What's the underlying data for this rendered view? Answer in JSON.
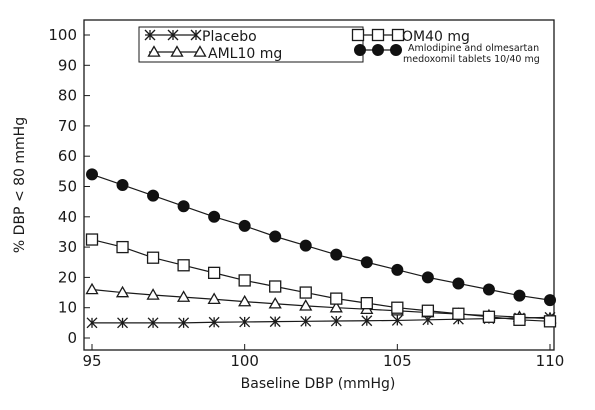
{
  "chart_data": {
    "type": "line",
    "xlabel": "Baseline DBP (mmHg)",
    "ylabel": "% DBP < 80 mmHg",
    "xlim": [
      95,
      110
    ],
    "ylim": [
      0,
      100
    ],
    "xticks": [
      95,
      100,
      105,
      110
    ],
    "yticks": [
      0,
      10,
      20,
      30,
      40,
      50,
      60,
      70,
      80,
      90,
      100
    ],
    "x": [
      95,
      96,
      97,
      98,
      99,
      100,
      101,
      102,
      103,
      104,
      105,
      106,
      107,
      108,
      109,
      110
    ],
    "series": [
      {
        "name": "Placebo",
        "marker": "asterisk",
        "color": "#1a1a1a",
        "values": [
          5,
          5,
          5,
          5,
          5.2,
          5.3,
          5.4,
          5.5,
          5.6,
          5.7,
          5.8,
          6,
          6.2,
          6.4,
          6.6,
          6.8
        ]
      },
      {
        "name": "AML10 mg",
        "marker": "triangle",
        "color": "#1a1a1a",
        "values": [
          16,
          15,
          14.2,
          13.5,
          12.8,
          12,
          11.3,
          10.6,
          10,
          9.5,
          9,
          8.4,
          7.9,
          7.4,
          6.9,
          6.4
        ]
      },
      {
        "name": "OM40 mg",
        "marker": "square",
        "color": "#1a1a1a",
        "values": [
          32.5,
          30,
          26.5,
          24,
          21.5,
          19,
          17,
          15,
          13,
          11.5,
          10,
          9,
          8,
          7,
          6,
          5.5
        ]
      },
      {
        "name": "Amlodipine and olmesartan medoxomil tablets 10/40 mg",
        "marker": "filled-circle",
        "color": "#1a1a1a",
        "values": [
          54,
          50.5,
          47,
          43.5,
          40,
          37,
          33.5,
          30.5,
          27.5,
          25,
          22.5,
          20,
          18,
          16,
          14,
          12.5
        ]
      }
    ],
    "legend": {
      "placement": "top",
      "entries": [
        {
          "label": "Placebo"
        },
        {
          "label": "OM40 mg"
        },
        {
          "label": "AML10 mg"
        },
        {
          "label_line1": "Amlodipine and olmesartan",
          "label_line2": "medoxomil tablets 10/40 mg"
        }
      ]
    },
    "grid": false
  }
}
